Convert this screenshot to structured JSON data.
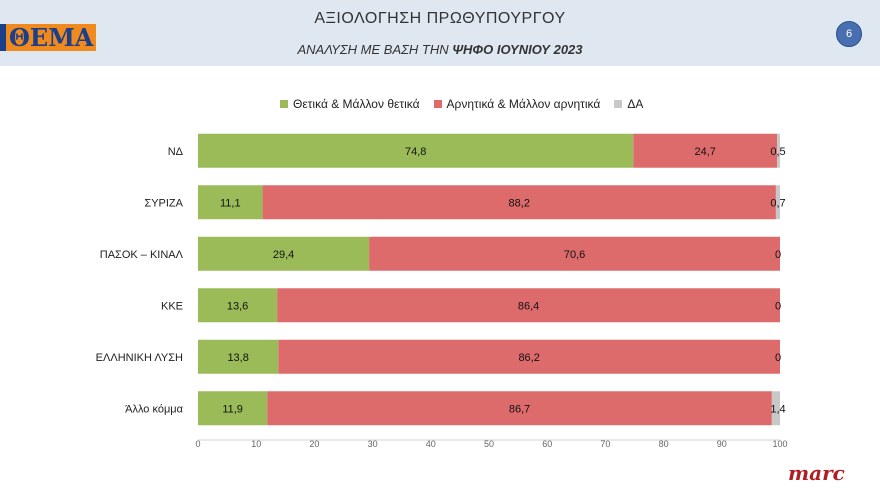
{
  "header": {
    "logo_text": "ΘΕΜΑ",
    "title": "ΑΞΙΟΛΟΓΗΣΗ ΠΡΩΘΥΠΟΥΡΓΟΥ",
    "subtitle_prefix": "ΑΝΑΛΥΣΗ ΜΕ ΒΑΣΗ ΤΗΝ ",
    "subtitle_bold": "ΨΗΦΟ ΙΟΥΝΙΟΥ 2023",
    "page_number": "6"
  },
  "footer": {
    "brand": "marc"
  },
  "colors": {
    "positive": "#9bbb59",
    "negative": "#dd6b6b",
    "dk": "#c8c8c8"
  },
  "chart_data": {
    "type": "bar",
    "orientation": "horizontal",
    "stacked": true,
    "categories": [
      "ΝΔ",
      "ΣΥΡΙΖΑ",
      "ΠΑΣΟΚ – ΚΙΝΑΛ",
      "ΚΚΕ",
      "ΕΛΛΗΝΙΚΗ ΛΥΣΗ",
      "Άλλο κόμμα"
    ],
    "series": [
      {
        "name": "Θετικά & Μάλλον θετικά",
        "values": [
          74.8,
          11.1,
          29.4,
          13.6,
          13.8,
          11.9
        ],
        "labels": [
          "74,8",
          "11,1",
          "29,4",
          "13,6",
          "13,8",
          "11,9"
        ]
      },
      {
        "name": "Αρνητικά & Μάλλον αρνητικά",
        "values": [
          24.7,
          88.2,
          70.6,
          86.4,
          86.2,
          86.7
        ],
        "labels": [
          "24,7",
          "88,2",
          "70,6",
          "86,4",
          "86,2",
          "86,7"
        ]
      },
      {
        "name": "ΔΑ",
        "values": [
          0.5,
          0.7,
          0,
          0,
          0,
          1.4
        ],
        "labels": [
          "0,5",
          "0,7",
          "0",
          "0",
          "0",
          "1,4"
        ]
      }
    ],
    "xlim": [
      0,
      100
    ],
    "xticks": [
      "0",
      "10",
      "20",
      "30",
      "40",
      "50",
      "60",
      "70",
      "80",
      "90",
      "100"
    ],
    "legend_position": "top",
    "grid": false
  }
}
